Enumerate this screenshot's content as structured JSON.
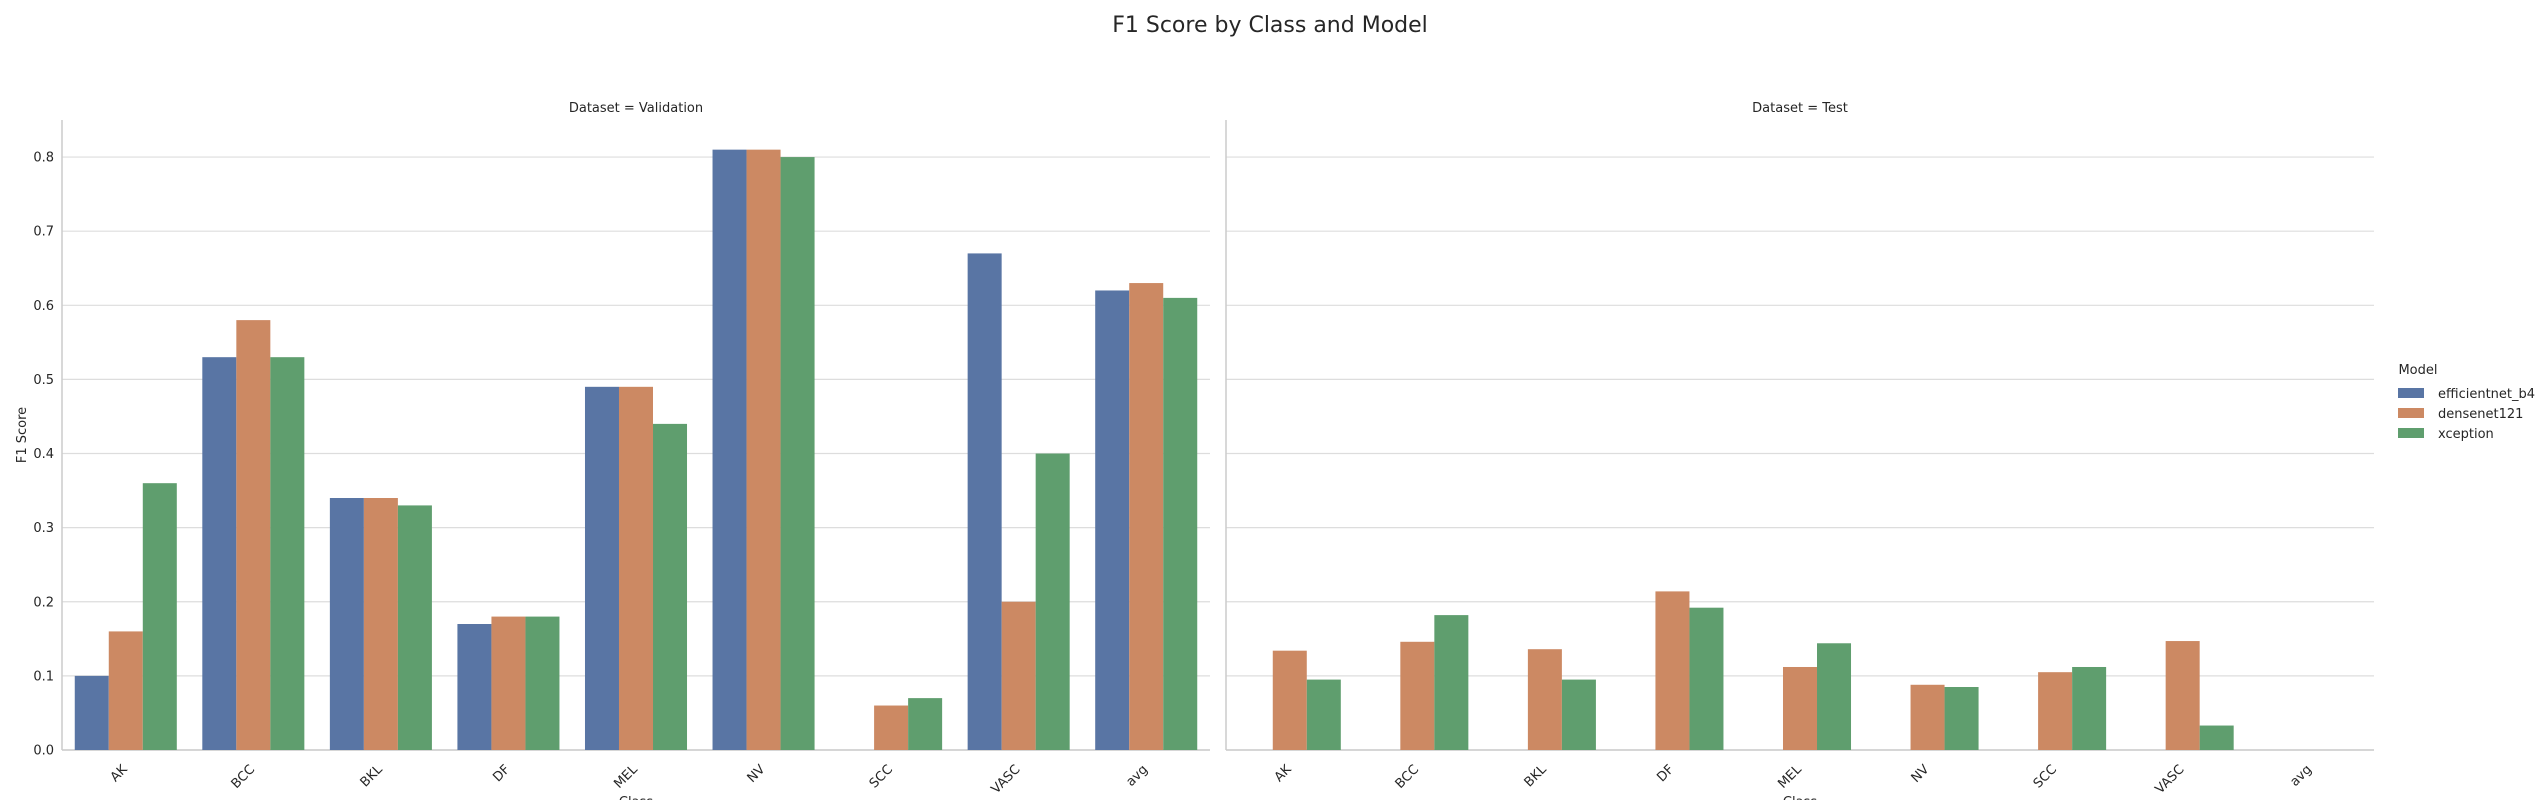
{
  "chart_data": {
    "type": "bar",
    "title": "F1 Score by Class and Model",
    "xlabel": "Class",
    "ylabel": "F1 Score",
    "ylim": [
      0,
      0.85
    ],
    "yticks": [
      "0.0",
      "0.1",
      "0.2",
      "0.3",
      "0.4",
      "0.5",
      "0.6",
      "0.7",
      "0.8"
    ],
    "grid": true,
    "legend_position": "right",
    "legend_title": "Model",
    "categories": [
      "AK",
      "BCC",
      "BKL",
      "DF",
      "MEL",
      "NV",
      "SCC",
      "VASC",
      "avg"
    ],
    "series_names": [
      "efficientnet_b4",
      "densenet121",
      "xception"
    ],
    "series_colors": [
      "#5975a4",
      "#cc8963",
      "#5f9e6e"
    ],
    "panels": [
      {
        "title": "Dataset = Validation",
        "series": [
          {
            "name": "efficientnet_b4",
            "values": [
              0.1,
              0.53,
              0.34,
              0.17,
              0.49,
              0.81,
              0.0,
              0.67,
              0.62
            ]
          },
          {
            "name": "densenet121",
            "values": [
              0.16,
              0.58,
              0.34,
              0.18,
              0.49,
              0.81,
              0.06,
              0.2,
              0.63
            ]
          },
          {
            "name": "xception",
            "values": [
              0.36,
              0.53,
              0.33,
              0.18,
              0.44,
              0.8,
              0.07,
              0.4,
              0.61
            ]
          }
        ]
      },
      {
        "title": "Dataset = Test",
        "series": [
          {
            "name": "efficientnet_b4",
            "values": [
              0.0,
              0.0,
              0.0,
              0.0,
              0.0,
              0.0,
              0.0,
              0.0,
              0.0
            ]
          },
          {
            "name": "densenet121",
            "values": [
              0.134,
              0.146,
              0.136,
              0.214,
              0.112,
              0.088,
              0.105,
              0.147,
              0.0
            ]
          },
          {
            "name": "xception",
            "values": [
              0.095,
              0.182,
              0.095,
              0.192,
              0.144,
              0.085,
              0.112,
              0.033,
              0.0
            ]
          }
        ]
      }
    ]
  }
}
